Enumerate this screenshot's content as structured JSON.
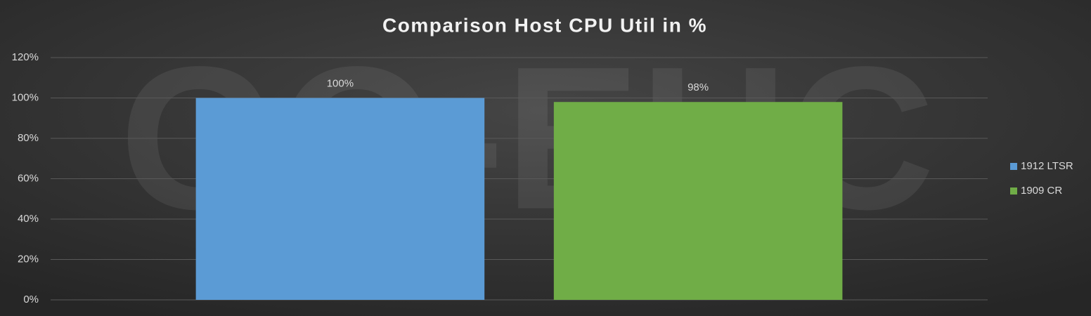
{
  "chart_data": {
    "type": "bar",
    "title": "Comparison Host CPU Util in %",
    "watermark": "GO-EUC",
    "categories": [
      null
    ],
    "series": [
      {
        "name": "1912 LTSR",
        "color": "#5b9bd5",
        "values": [
          100
        ],
        "value_labels": [
          "100%"
        ]
      },
      {
        "name": "1909 CR",
        "color": "#70ad47",
        "values": [
          98
        ],
        "value_labels": [
          "98%"
        ]
      }
    ],
    "ylim": [
      0,
      120
    ],
    "yticks": [
      {
        "value": 0,
        "label": "0%"
      },
      {
        "value": 20,
        "label": "20%"
      },
      {
        "value": 40,
        "label": "40%"
      },
      {
        "value": 60,
        "label": "60%"
      },
      {
        "value": 80,
        "label": "80%"
      },
      {
        "value": 100,
        "label": "100%"
      },
      {
        "value": 120,
        "label": "120%"
      }
    ],
    "grid": true,
    "legend": "right"
  }
}
